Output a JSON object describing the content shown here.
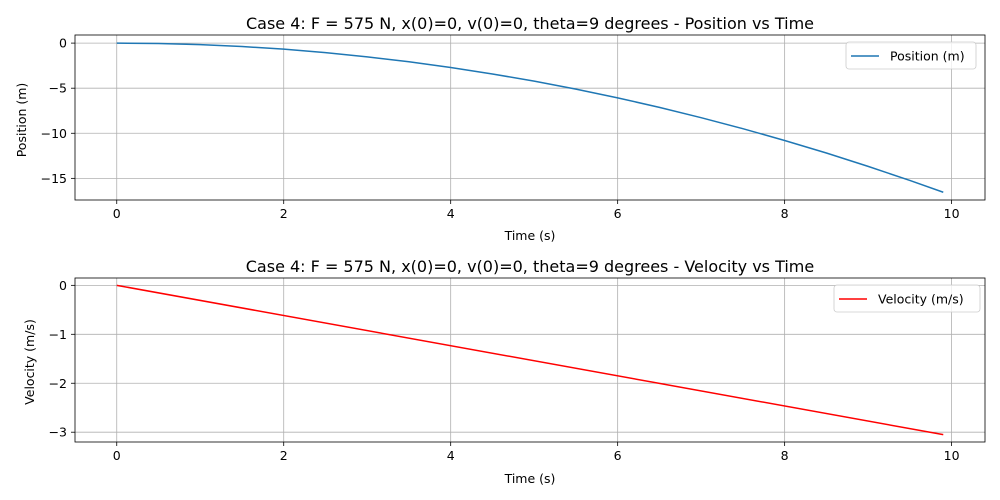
{
  "chart_data": [
    {
      "type": "line",
      "title": "Case 4: F = 575 N, x(0)=0, v(0)=0, theta=9 degrees - Position vs Time",
      "xlabel": "Time (s)",
      "ylabel": "Position (m)",
      "xlim": [
        -0.5,
        10.4
      ],
      "ylim": [
        -17.4,
        0.9
      ],
      "xticks": [
        0,
        2,
        4,
        6,
        8,
        10
      ],
      "yticks": [
        0,
        -5,
        -10,
        -15
      ],
      "grid": true,
      "legend_position": "top-right",
      "series": [
        {
          "name": "Position (m)",
          "color": "#1f77b4",
          "x": [
            0,
            0.5,
            1,
            1.5,
            2,
            2.5,
            3,
            3.5,
            4,
            4.5,
            5,
            5.5,
            6,
            6.5,
            7,
            7.5,
            8,
            8.5,
            9,
            9.5,
            9.9
          ],
          "y": [
            0,
            -0.04,
            -0.17,
            -0.38,
            -0.67,
            -1.05,
            -1.52,
            -2.07,
            -2.7,
            -3.42,
            -4.22,
            -5.1,
            -6.07,
            -7.13,
            -8.27,
            -9.49,
            -10.8,
            -12.19,
            -13.67,
            -15.23,
            -16.54
          ]
        }
      ]
    },
    {
      "type": "line",
      "title": "Case 4: F = 575 N, x(0)=0, v(0)=0, theta=9 degrees - Velocity vs Time",
      "xlabel": "Time (s)",
      "ylabel": "Velocity (m/s)",
      "xlim": [
        -0.5,
        10.4
      ],
      "ylim": [
        -3.2,
        0.15
      ],
      "xticks": [
        0,
        2,
        4,
        6,
        8,
        10
      ],
      "yticks": [
        0,
        -1,
        -2,
        -3
      ],
      "grid": true,
      "legend_position": "top-right",
      "series": [
        {
          "name": "Velocity (m/s)",
          "color": "#ff0000",
          "x": [
            0,
            9.9
          ],
          "y": [
            0,
            -3.05
          ]
        }
      ]
    }
  ]
}
